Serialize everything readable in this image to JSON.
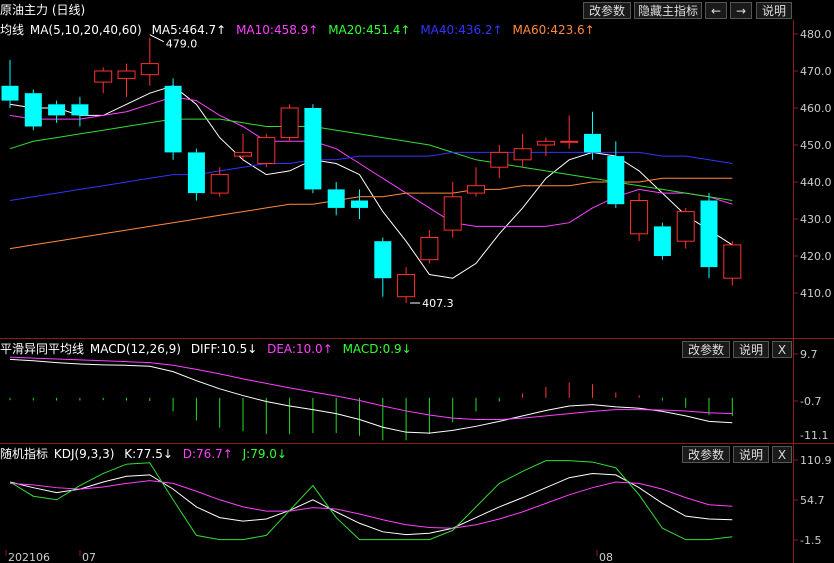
{
  "main": {
    "title": "原油主力 (日线)",
    "buttons": [
      "改参数",
      "隐藏主指标",
      "←",
      "→",
      "说明"
    ],
    "ma_name": "均线",
    "ma_params": "MA(5,10,20,40,60)",
    "ma5": "MA5:464.7↑",
    "ma10": "MA10:458.9↑",
    "ma20": "MA20:451.4↑",
    "ma40": "MA40:436.2↑",
    "ma60": "MA60:423.6↑",
    "high_label": "479.0",
    "low_label": "407.3",
    "y_ticks": [
      "480.0",
      "470.0",
      "460.0",
      "450.0",
      "440.0",
      "430.0",
      "420.0",
      "410.0"
    ],
    "colors": {
      "ma5": "#ffffff",
      "ma10": "#ff40ff",
      "ma20": "#33dd33",
      "ma40": "#3333ff",
      "ma60": "#ff8a3c",
      "up": "#ff3030",
      "down": "#00ffff"
    }
  },
  "macd": {
    "name": "平滑异同平均线",
    "params": "MACD(12,26,9)",
    "diff": "DIFF:10.5↓",
    "dea": "DEA:10.0↑",
    "macd": "MACD:0.9↓",
    "buttons": [
      "改参数",
      "说明",
      "X"
    ],
    "y_ticks": [
      "9.7",
      "-0.7",
      "-11.1"
    ]
  },
  "kdj": {
    "name": "随机指标",
    "params": "KDJ(9,3,3)",
    "k": "K:77.5↓",
    "d": "D:76.7↑",
    "j": "J:79.0↓",
    "buttons": [
      "改参数",
      "说明",
      "X"
    ],
    "y_ticks": [
      "110.9",
      "54.7",
      "-1.5"
    ]
  },
  "x_labels": [
    "202106",
    "07",
    "08"
  ],
  "chart_data": [
    {
      "type": "candlestick",
      "title": "原油主力 (日线)",
      "ylim": [
        404,
        482
      ],
      "high_marker": 479.0,
      "low_marker": 407.3,
      "candles": [
        {
          "o": 466,
          "c": 462,
          "h": 473,
          "l": 460
        },
        {
          "o": 464,
          "c": 455,
          "h": 465,
          "l": 454
        },
        {
          "o": 461,
          "c": 458,
          "h": 462,
          "l": 456
        },
        {
          "o": 461,
          "c": 458,
          "h": 463,
          "l": 455
        },
        {
          "o": 467,
          "c": 470,
          "h": 471,
          "l": 464
        },
        {
          "o": 468,
          "c": 470,
          "h": 472,
          "l": 463
        },
        {
          "o": 469,
          "c": 472,
          "h": 479,
          "l": 466
        },
        {
          "o": 466,
          "c": 448,
          "h": 468,
          "l": 446
        },
        {
          "o": 448,
          "c": 437,
          "h": 449,
          "l": 435
        },
        {
          "o": 437,
          "c": 442,
          "h": 444,
          "l": 436
        },
        {
          "o": 447,
          "c": 448,
          "h": 453,
          "l": 446
        },
        {
          "o": 445,
          "c": 452,
          "h": 453,
          "l": 444
        },
        {
          "o": 452,
          "c": 460,
          "h": 461,
          "l": 451
        },
        {
          "o": 460,
          "c": 438,
          "h": 461,
          "l": 437
        },
        {
          "o": 438,
          "c": 433,
          "h": 440,
          "l": 431
        },
        {
          "o": 435,
          "c": 433,
          "h": 438,
          "l": 430
        },
        {
          "o": 424,
          "c": 414,
          "h": 425,
          "l": 409
        },
        {
          "o": 409,
          "c": 415,
          "h": 417,
          "l": 407.3
        },
        {
          "o": 419,
          "c": 425,
          "h": 427,
          "l": 418
        },
        {
          "o": 427,
          "c": 436,
          "h": 440,
          "l": 425
        },
        {
          "o": 437,
          "c": 439,
          "h": 444,
          "l": 436
        },
        {
          "o": 444,
          "c": 448,
          "h": 450,
          "l": 441
        },
        {
          "o": 446,
          "c": 449,
          "h": 453,
          "l": 444
        },
        {
          "o": 450,
          "c": 451,
          "h": 452,
          "l": 447
        },
        {
          "o": 451,
          "c": 451,
          "h": 458,
          "l": 449
        },
        {
          "o": 453,
          "c": 448,
          "h": 459,
          "l": 446
        },
        {
          "o": 447,
          "c": 434,
          "h": 451,
          "l": 433
        },
        {
          "o": 426,
          "c": 435,
          "h": 437,
          "l": 424
        },
        {
          "o": 428,
          "c": 420,
          "h": 429,
          "l": 419
        },
        {
          "o": 424,
          "c": 432,
          "h": 433,
          "l": 422
        },
        {
          "o": 435,
          "c": 417,
          "h": 437,
          "l": 414
        },
        {
          "o": 414,
          "c": 423,
          "h": 424,
          "l": 412
        }
      ],
      "series": [
        {
          "name": "MA5",
          "values": [
            461,
            460,
            460,
            458,
            458,
            461,
            464,
            466,
            461,
            452,
            446,
            442,
            443,
            446,
            445,
            442,
            432,
            424,
            415,
            414,
            418,
            426,
            433,
            441,
            446,
            448,
            447,
            443,
            437,
            431,
            427,
            423
          ]
        },
        {
          "name": "MA10",
          "values": [
            458,
            457,
            457,
            457,
            458,
            459,
            461,
            463,
            462,
            458,
            455,
            451,
            451,
            451,
            449,
            445,
            441,
            437,
            433,
            429,
            428,
            428,
            428,
            428,
            429,
            433,
            436,
            438,
            437,
            437,
            436,
            434
          ]
        },
        {
          "name": "MA20",
          "values": [
            449,
            451,
            452,
            453,
            454,
            455,
            456,
            457,
            457,
            457,
            456,
            455,
            455,
            455,
            454,
            453,
            452,
            451,
            450,
            448,
            446,
            445,
            444,
            443,
            442,
            441,
            440,
            439,
            438,
            437,
            436,
            435
          ]
        },
        {
          "name": "MA40",
          "values": [
            435,
            436,
            437,
            438,
            439,
            440,
            441,
            442,
            442,
            443,
            444,
            445,
            445,
            446,
            446,
            447,
            447,
            447,
            447,
            448,
            448,
            448,
            448,
            448,
            448,
            448,
            448,
            448,
            447,
            447,
            446,
            445
          ]
        },
        {
          "name": "MA60",
          "values": [
            422,
            423,
            424,
            425,
            426,
            427,
            428,
            429,
            430,
            431,
            432,
            433,
            434,
            434,
            435,
            436,
            436,
            437,
            437,
            437,
            438,
            438,
            439,
            439,
            439,
            440,
            440,
            440,
            441,
            441,
            441,
            441
          ]
        }
      ]
    },
    {
      "type": "bar",
      "title": "MACD(12,26,9)",
      "ylim": [
        -11.1,
        9.7
      ],
      "series": [
        {
          "name": "DIFF",
          "values": [
            8.5,
            8.2,
            7.8,
            7.5,
            7.3,
            7.2,
            7.0,
            5.8,
            3.8,
            2.0,
            0.5,
            -0.8,
            -1.8,
            -2.6,
            -3.5,
            -4.8,
            -6.5,
            -7.6,
            -7.8,
            -7.2,
            -6.3,
            -5.2,
            -4.0,
            -2.8,
            -1.8,
            -1.5,
            -2.0,
            -2.3,
            -3.0,
            -4.0,
            -5.2,
            -5.5
          ]
        },
        {
          "name": "DEA",
          "values": [
            9.0,
            8.8,
            8.6,
            8.4,
            8.2,
            8.0,
            7.8,
            7.2,
            6.3,
            5.3,
            4.2,
            3.2,
            2.2,
            1.3,
            0.4,
            -0.6,
            -1.8,
            -2.9,
            -3.8,
            -4.5,
            -4.8,
            -4.8,
            -4.5,
            -4.0,
            -3.5,
            -3.0,
            -2.6,
            -2.6,
            -2.7,
            -2.9,
            -3.3,
            -3.5
          ]
        },
        {
          "name": "MACD",
          "values": [
            -0.5,
            -0.6,
            -0.6,
            -0.6,
            -0.5,
            -0.6,
            -0.7,
            -3.0,
            -5.0,
            -6.6,
            -7.4,
            -8.0,
            -8.0,
            -7.8,
            -7.8,
            -8.4,
            -9.4,
            -9.4,
            -8.0,
            -5.4,
            -3.0,
            -0.8,
            1.0,
            2.4,
            3.4,
            3.0,
            1.2,
            0.6,
            -0.6,
            -2.2,
            -3.8,
            -4.0
          ]
        }
      ]
    },
    {
      "type": "line",
      "title": "KDJ(9,3,3)",
      "ylim": [
        -1.5,
        110.9
      ],
      "series": [
        {
          "name": "K",
          "values": [
            80,
            72,
            65,
            70,
            80,
            88,
            90,
            70,
            45,
            30,
            25,
            28,
            40,
            55,
            38,
            22,
            10,
            6,
            8,
            15,
            30,
            45,
            58,
            72,
            86,
            92,
            90,
            72,
            50,
            32,
            28,
            27
          ]
        },
        {
          "name": "D",
          "values": [
            78,
            76,
            72,
            70,
            73,
            78,
            82,
            78,
            67,
            55,
            45,
            39,
            39,
            44,
            42,
            35,
            27,
            20,
            16,
            15,
            20,
            28,
            38,
            50,
            62,
            72,
            80,
            78,
            70,
            58,
            48,
            46
          ]
        },
        {
          "name": "J",
          "values": [
            80,
            60,
            55,
            75,
            92,
            105,
            107,
            55,
            5,
            -1,
            -1,
            5,
            40,
            75,
            30,
            -1,
            -1,
            -1,
            -1,
            12,
            45,
            78,
            95,
            110,
            110,
            108,
            100,
            62,
            15,
            -1,
            -1,
            3
          ]
        }
      ]
    }
  ]
}
